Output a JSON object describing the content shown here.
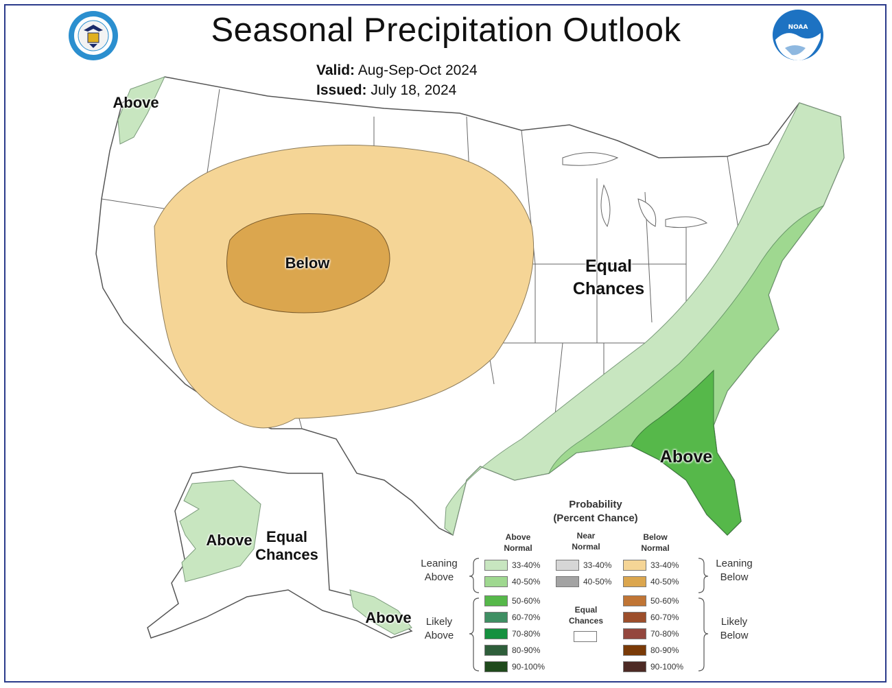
{
  "title": "Seasonal Precipitation Outlook",
  "valid_label": "Valid:",
  "valid_value": "Aug-Sep-Oct 2024",
  "issued_label": "Issued:",
  "issued_value": "July 18, 2024",
  "logos": {
    "left": "doc-seal-icon",
    "right": "noaa-logo-icon"
  },
  "map_labels": {
    "pacific_nw": "Above",
    "west": "Below",
    "east_line1": "Equal",
    "east_line2": "Chances",
    "southeast": "Above",
    "alaska_above": "Above",
    "alaska_ec_line1": "Equal",
    "alaska_ec_line2": "Chances",
    "alaska_se": "Above"
  },
  "colors": {
    "lean_above": "#c8e6c0",
    "above_4050": "#9fd890",
    "above_5060": "#56b84a",
    "lean_below": "#f5d596",
    "below_4050": "#dba64e",
    "ec": "#ffffff",
    "border": "#555555",
    "frame": "#2a3a8a"
  },
  "legend": {
    "title_line1": "Probability",
    "title_line2": "(Percent Chance)",
    "col_above_line1": "Above",
    "col_above_line2": "Normal",
    "col_near_line1": "Near",
    "col_near_line2": "Normal",
    "col_below_line1": "Below",
    "col_below_line2": "Normal",
    "leaning_above_line1": "Leaning",
    "leaning_above_line2": "Above",
    "leaning_below_line1": "Leaning",
    "leaning_below_line2": "Below",
    "likely_above_line1": "Likely",
    "likely_above_line2": "Above",
    "likely_below_line1": "Likely",
    "likely_below_line2": "Below",
    "equal_line1": "Equal",
    "equal_line2": "Chances",
    "above": [
      {
        "label": "33-40%",
        "color": "#c8e6c0"
      },
      {
        "label": "40-50%",
        "color": "#9fd890"
      },
      {
        "label": "50-60%",
        "color": "#56b84a"
      },
      {
        "label": "60-70%",
        "color": "#3f8f63"
      },
      {
        "label": "70-80%",
        "color": "#15913f"
      },
      {
        "label": "80-90%",
        "color": "#2e5e3a"
      },
      {
        "label": "90-100%",
        "color": "#1f4a1c"
      }
    ],
    "near": [
      {
        "label": "33-40%",
        "color": "#d6d6d6"
      },
      {
        "label": "40-50%",
        "color": "#a3a3a3"
      }
    ],
    "below": [
      {
        "label": "33-40%",
        "color": "#f5d596"
      },
      {
        "label": "40-50%",
        "color": "#dba64e"
      },
      {
        "label": "50-60%",
        "color": "#c07535"
      },
      {
        "label": "60-70%",
        "color": "#9c4e2b"
      },
      {
        "label": "70-80%",
        "color": "#94473e"
      },
      {
        "label": "80-90%",
        "color": "#7a3a07"
      },
      {
        "label": "90-100%",
        "color": "#4d2a24"
      }
    ]
  }
}
